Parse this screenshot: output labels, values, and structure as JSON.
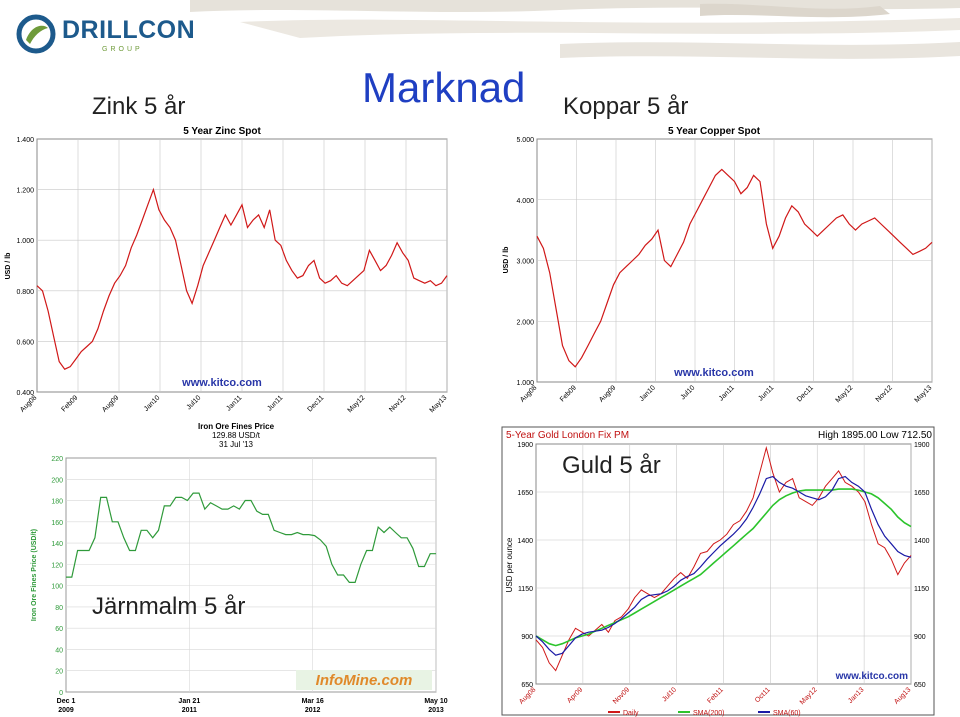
{
  "slide": {
    "title": "Marknad",
    "logo_name": "DRILLCON",
    "logo_sub": "GROUP",
    "labels": {
      "zinc": "Zink 5 år",
      "copper": "Koppar 5 år",
      "gold": "Guld 5 år",
      "iron": "Järnmalm 5 år"
    },
    "colors": {
      "title": "#1f3fc2",
      "logo": "#1d5a8c",
      "logo_green": "#6f9b3a"
    }
  },
  "chart_data": [
    {
      "id": "zinc",
      "type": "line",
      "title": "5 Year Zinc Spot",
      "ylabel": "USD / lb",
      "ylim": [
        0.4,
        1.4
      ],
      "yticks": [
        "1.400",
        "1.200",
        "1.000",
        "0.800",
        "0.600",
        "0.400"
      ],
      "xticks": [
        "Aug08",
        "Feb09",
        "Aug09",
        "Jan10",
        "Jul10",
        "Jan11",
        "Jun11",
        "Dec11",
        "May12",
        "Nov12",
        "May13"
      ],
      "watermark": "www.kitco.com",
      "line_color": "#d01818",
      "series": [
        {
          "values": [
            0.82,
            0.8,
            0.72,
            0.62,
            0.52,
            0.49,
            0.5,
            0.53,
            0.56,
            0.58,
            0.6,
            0.65,
            0.72,
            0.78,
            0.83,
            0.86,
            0.9,
            0.97,
            1.02,
            1.08,
            1.14,
            1.2,
            1.12,
            1.08,
            1.05,
            1.0,
            0.9,
            0.8,
            0.75,
            0.82,
            0.9,
            0.95,
            1.0,
            1.05,
            1.1,
            1.06,
            1.1,
            1.14,
            1.05,
            1.08,
            1.1,
            1.05,
            1.12,
            1.0,
            0.98,
            0.92,
            0.88,
            0.85,
            0.86,
            0.9,
            0.92,
            0.85,
            0.83,
            0.84,
            0.86,
            0.83,
            0.82,
            0.84,
            0.86,
            0.88,
            0.96,
            0.92,
            0.88,
            0.9,
            0.94,
            0.99,
            0.95,
            0.92,
            0.85,
            0.84,
            0.83,
            0.84,
            0.82,
            0.83,
            0.86
          ]
        }
      ]
    },
    {
      "id": "copper",
      "type": "line",
      "title": "5 Year Copper Spot",
      "ylabel": "USD / lb",
      "ylim": [
        1.0,
        5.0
      ],
      "yticks": [
        "5.000",
        "4.000",
        "3.000",
        "2.000",
        "1.000"
      ],
      "xticks": [
        "Aug08",
        "Feb09",
        "Aug09",
        "Jan10",
        "Jul10",
        "Jan11",
        "Jun11",
        "Dec11",
        "May12",
        "Nov12",
        "May13"
      ],
      "watermark": "www.kitco.com",
      "line_color": "#d01818",
      "series": [
        {
          "values": [
            3.4,
            3.2,
            2.8,
            2.2,
            1.6,
            1.35,
            1.25,
            1.4,
            1.6,
            1.8,
            2.0,
            2.3,
            2.6,
            2.8,
            2.9,
            3.0,
            3.1,
            3.25,
            3.35,
            3.5,
            3.0,
            2.9,
            3.1,
            3.3,
            3.6,
            3.8,
            4.0,
            4.2,
            4.4,
            4.5,
            4.4,
            4.3,
            4.1,
            4.2,
            4.4,
            4.3,
            3.6,
            3.2,
            3.4,
            3.7,
            3.9,
            3.8,
            3.6,
            3.5,
            3.4,
            3.5,
            3.6,
            3.7,
            3.75,
            3.6,
            3.5,
            3.6,
            3.65,
            3.7,
            3.6,
            3.5,
            3.4,
            3.3,
            3.2,
            3.1,
            3.15,
            3.2,
            3.3
          ]
        }
      ]
    },
    {
      "id": "iron",
      "type": "line",
      "title": "Iron Ore Fines Price",
      "subtitle": "129.88 USD/t",
      "date": "31 Jul '13",
      "ylabel": "Iron Ore Fines Price (USD/t)",
      "ylim": [
        0,
        220
      ],
      "yticks": [
        "220",
        "200",
        "180",
        "160",
        "140",
        "120",
        "100",
        "80",
        "60",
        "40",
        "20",
        "0"
      ],
      "xticks": [
        {
          "l1": "Dec 1",
          "l2": "2009"
        },
        {
          "l1": "Jan 21",
          "l2": "2011"
        },
        {
          "l1": "Mar 16",
          "l2": "2012"
        },
        {
          "l1": "May 10",
          "l2": "2013"
        }
      ],
      "watermark": "InfoMine.com",
      "line_color": "#2f9a3a",
      "series": [
        {
          "values": [
            108,
            108,
            133,
            133,
            133,
            145,
            183,
            183,
            160,
            160,
            145,
            133,
            133,
            152,
            152,
            145,
            152,
            175,
            175,
            183,
            183,
            180,
            187,
            187,
            172,
            178,
            175,
            172,
            172,
            175,
            172,
            180,
            180,
            170,
            167,
            167,
            152,
            150,
            148,
            148,
            150,
            148,
            148,
            147,
            143,
            137,
            120,
            110,
            110,
            103,
            103,
            120,
            133,
            133,
            155,
            150,
            155,
            150,
            145,
            145,
            135,
            118,
            118,
            130,
            130
          ]
        }
      ]
    },
    {
      "id": "gold",
      "type": "line",
      "title": "5-Year Gold London Fix PM",
      "summary": "High 1895.00 Low 712.50",
      "ylabel": "USD per ounce",
      "ylim": [
        650,
        1900
      ],
      "yticks": [
        "1900",
        "1650",
        "1400",
        "1150",
        "900",
        "650"
      ],
      "xticks": [
        "Aug08",
        "Apr09",
        "Nov09",
        "Jul10",
        "Feb11",
        "Oct11",
        "May12",
        "Jan13",
        "Aug13"
      ],
      "watermark": "www.kitco.com",
      "legend": [
        "Daily",
        "SMA(200)",
        "SMA(60)"
      ],
      "series_colors": [
        "#d01818",
        "#2cc42c",
        "#1a1aa6"
      ],
      "series": [
        {
          "name": "Daily",
          "values": [
            880,
            840,
            760,
            720,
            800,
            880,
            940,
            920,
            900,
            930,
            960,
            920,
            980,
            1000,
            1040,
            1100,
            1140,
            1120,
            1100,
            1120,
            1160,
            1200,
            1230,
            1200,
            1260,
            1330,
            1340,
            1380,
            1400,
            1430,
            1480,
            1500,
            1550,
            1620,
            1750,
            1880,
            1750,
            1650,
            1700,
            1720,
            1620,
            1600,
            1580,
            1620,
            1680,
            1720,
            1760,
            1700,
            1680,
            1650,
            1600,
            1480,
            1380,
            1360,
            1300,
            1220,
            1280,
            1320
          ]
        },
        {
          "name": "SMA(200)",
          "values": [
            900,
            880,
            860,
            850,
            860,
            875,
            890,
            900,
            910,
            925,
            940,
            955,
            970,
            985,
            1000,
            1020,
            1040,
            1060,
            1080,
            1100,
            1120,
            1140,
            1160,
            1180,
            1200,
            1220,
            1250,
            1280,
            1310,
            1340,
            1370,
            1400,
            1430,
            1460,
            1500,
            1540,
            1580,
            1610,
            1630,
            1645,
            1655,
            1660,
            1660,
            1660,
            1660,
            1660,
            1665,
            1665,
            1665,
            1660,
            1650,
            1640,
            1620,
            1590,
            1560,
            1520,
            1490,
            1470
          ]
        },
        {
          "name": "SMA(60)",
          "values": [
            900,
            870,
            830,
            800,
            810,
            850,
            890,
            910,
            920,
            925,
            930,
            945,
            965,
            990,
            1020,
            1050,
            1090,
            1110,
            1115,
            1120,
            1135,
            1160,
            1190,
            1210,
            1225,
            1260,
            1300,
            1335,
            1370,
            1400,
            1430,
            1465,
            1510,
            1570,
            1640,
            1720,
            1730,
            1700,
            1680,
            1670,
            1650,
            1630,
            1620,
            1610,
            1625,
            1660,
            1720,
            1730,
            1700,
            1680,
            1650,
            1560,
            1480,
            1420,
            1380,
            1340,
            1320,
            1310
          ]
        }
      ]
    }
  ]
}
